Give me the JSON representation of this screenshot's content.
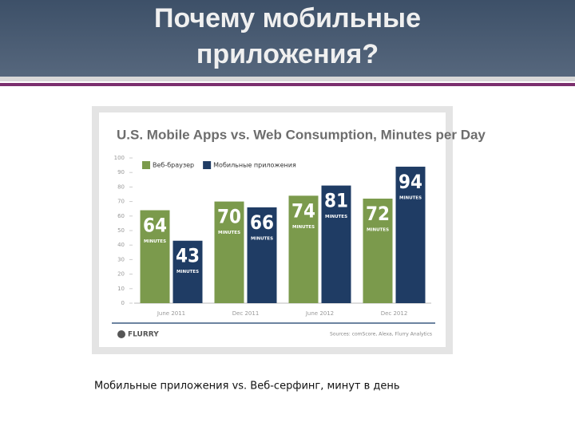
{
  "slide": {
    "title": [
      "Почему мобильные",
      "приложения?"
    ],
    "caption": "Мобильные приложения vs. Веб-серфинг, минут в день"
  },
  "chart_data": {
    "type": "bar",
    "title": "U.S. Mobile Apps vs. Web Consumption, Minutes per Day",
    "categories": [
      "June 2011",
      "Dec 2011",
      "June 2012",
      "Dec 2012"
    ],
    "series": [
      {
        "name": "Веб-браузер",
        "color": "#7b9a4c",
        "values": [
          64,
          70,
          74,
          72
        ]
      },
      {
        "name": "Мобильные приложения",
        "color": "#1f3c64",
        "values": [
          43,
          66,
          81,
          94
        ]
      }
    ],
    "bar_label_unit": "MINUTES",
    "ylim": [
      0,
      100
    ],
    "yticks": [
      0,
      10,
      20,
      30,
      40,
      50,
      60,
      70,
      80,
      90,
      100
    ],
    "grid": false,
    "logo": "FLURRY",
    "source": "Sources: comScore, Alexa, Flurry Analytics"
  }
}
